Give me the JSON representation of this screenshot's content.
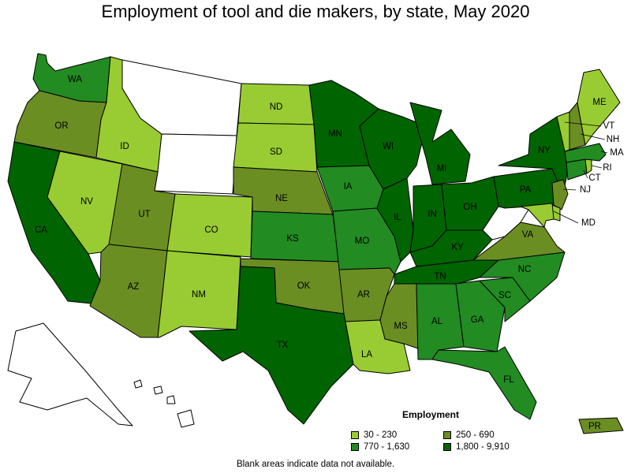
{
  "title": "Employment of tool and die makers, by state, May 2020",
  "legend": {
    "title": "Employment",
    "items": [
      {
        "label": "30 - 230",
        "color": "#99cc33"
      },
      {
        "label": "250 - 690",
        "color": "#6b8e23"
      },
      {
        "label": "770 - 1,630",
        "color": "#228b22"
      },
      {
        "label": "1,800 - 9,910",
        "color": "#006400"
      }
    ]
  },
  "footnote": "Blank areas indicate data not available.",
  "states": [
    {
      "abbr": "WA",
      "category": "770 - 1,630"
    },
    {
      "abbr": "OR",
      "category": "250 - 690"
    },
    {
      "abbr": "CA",
      "category": "1,800 - 9,910"
    },
    {
      "abbr": "ID",
      "category": "30 - 230"
    },
    {
      "abbr": "NV",
      "category": "30 - 230"
    },
    {
      "abbr": "MT",
      "category": "no data"
    },
    {
      "abbr": "WY",
      "category": "no data"
    },
    {
      "abbr": "UT",
      "category": "250 - 690"
    },
    {
      "abbr": "AZ",
      "category": "250 - 690"
    },
    {
      "abbr": "CO",
      "category": "30 - 230"
    },
    {
      "abbr": "NM",
      "category": "30 - 230"
    },
    {
      "abbr": "ND",
      "category": "30 - 230"
    },
    {
      "abbr": "SD",
      "category": "30 - 230"
    },
    {
      "abbr": "NE",
      "category": "250 - 690"
    },
    {
      "abbr": "KS",
      "category": "770 - 1,630"
    },
    {
      "abbr": "OK",
      "category": "250 - 690"
    },
    {
      "abbr": "TX",
      "category": "1,800 - 9,910"
    },
    {
      "abbr": "MN",
      "category": "1,800 - 9,910"
    },
    {
      "abbr": "IA",
      "category": "770 - 1,630"
    },
    {
      "abbr": "MO",
      "category": "770 - 1,630"
    },
    {
      "abbr": "AR",
      "category": "250 - 690"
    },
    {
      "abbr": "LA",
      "category": "30 - 230"
    },
    {
      "abbr": "WI",
      "category": "1,800 - 9,910"
    },
    {
      "abbr": "IL",
      "category": "1,800 - 9,910"
    },
    {
      "abbr": "MS",
      "category": "250 - 690"
    },
    {
      "abbr": "MI",
      "category": "1,800 - 9,910"
    },
    {
      "abbr": "IN",
      "category": "1,800 - 9,910"
    },
    {
      "abbr": "OH",
      "category": "1,800 - 9,910"
    },
    {
      "abbr": "KY",
      "category": "1,800 - 9,910"
    },
    {
      "abbr": "TN",
      "category": "1,800 - 9,910"
    },
    {
      "abbr": "AL",
      "category": "770 - 1,630"
    },
    {
      "abbr": "GA",
      "category": "770 - 1,630"
    },
    {
      "abbr": "FL",
      "category": "770 - 1,630"
    },
    {
      "abbr": "SC",
      "category": "770 - 1,630"
    },
    {
      "abbr": "NC",
      "category": "770 - 1,630"
    },
    {
      "abbr": "VA",
      "category": "250 - 690"
    },
    {
      "abbr": "WV",
      "category": "no data"
    },
    {
      "abbr": "PA",
      "category": "1,800 - 9,910"
    },
    {
      "abbr": "NY",
      "category": "1,800 - 9,910"
    },
    {
      "abbr": "NJ",
      "category": "250 - 690"
    },
    {
      "abbr": "DE",
      "category": "30 - 230"
    },
    {
      "abbr": "MD",
      "category": "30 - 230"
    },
    {
      "abbr": "CT",
      "category": "770 - 1,630"
    },
    {
      "abbr": "RI",
      "category": "30 - 230"
    },
    {
      "abbr": "MA",
      "category": "770 - 1,630"
    },
    {
      "abbr": "VT",
      "category": "30 - 230"
    },
    {
      "abbr": "NH",
      "category": "250 - 690"
    },
    {
      "abbr": "ME",
      "category": "30 - 230"
    },
    {
      "abbr": "AK",
      "category": "no data"
    },
    {
      "abbr": "HI",
      "category": "no data"
    },
    {
      "abbr": "PR",
      "category": "250 - 690"
    }
  ]
}
